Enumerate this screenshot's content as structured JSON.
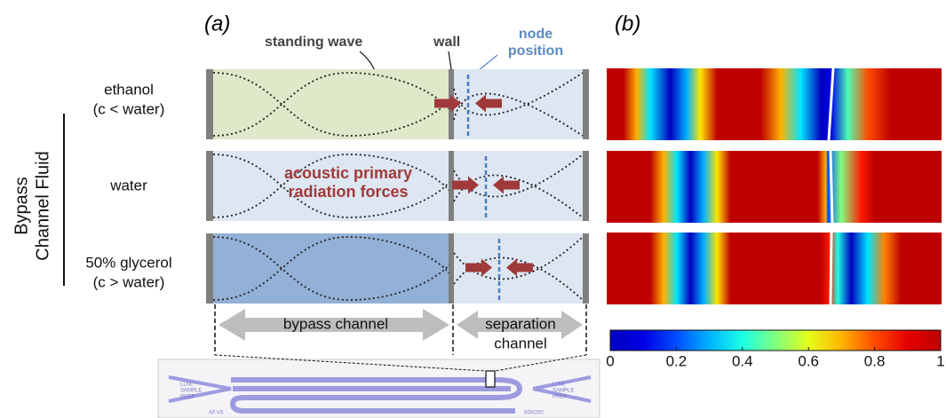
{
  "panels": {
    "a": {
      "label": "(a)"
    },
    "b": {
      "label": "(b)"
    }
  },
  "annotations": {
    "standing_wave": "standing wave",
    "wall": "wall",
    "node_position": [
      "node",
      "position"
    ],
    "forces": [
      "acoustic primary",
      "radiation forces"
    ]
  },
  "axis_label": [
    "Bypass",
    "Channel Fluid"
  ],
  "rows": [
    {
      "label": [
        "ethanol",
        "(c < water)"
      ]
    },
    {
      "label": [
        "water"
      ]
    },
    {
      "label": [
        "50% glycerol",
        "(c > water)"
      ]
    }
  ],
  "channels": {
    "bypass": "bypass channel",
    "separation": [
      "separation",
      "channel"
    ]
  },
  "chip": {
    "left": [
      "LLNL",
      "SAMPLE",
      "PREP"
    ],
    "right": [
      "LLNL",
      "SAMPLE",
      "PREP"
    ],
    "left_code": "AF.VS",
    "right_code": "500/200"
  },
  "colorbar": {
    "range": [
      0,
      1
    ],
    "ticks": [
      0,
      0.2,
      0.4,
      0.6,
      0.8,
      1
    ]
  }
}
